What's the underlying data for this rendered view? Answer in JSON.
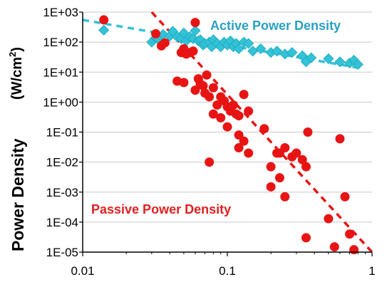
{
  "chart_data": {
    "type": "scatter",
    "title": "",
    "xlabel": "",
    "ylabel": "Power Density",
    "ylabel_unit_prefix": "(W/cm",
    "ylabel_unit_exponent": "2",
    "ylabel_unit_suffix": ")",
    "x_scale": "log",
    "y_scale": "log",
    "xlim": [
      0.01,
      1
    ],
    "ylim": [
      1e-05,
      1000
    ],
    "grid": true,
    "legend": "none",
    "x_ticks": [
      {
        "value": 0.01,
        "label": "0.01"
      },
      {
        "value": 0.1,
        "label": "0.1"
      },
      {
        "value": 1,
        "label": "1"
      }
    ],
    "y_ticks": [
      {
        "value": 1000,
        "label": "1E+03"
      },
      {
        "value": 100,
        "label": "1E+02"
      },
      {
        "value": 10,
        "label": "1E+01"
      },
      {
        "value": 1,
        "label": "1E+00"
      },
      {
        "value": 0.1,
        "label": "1E-01"
      },
      {
        "value": 0.01,
        "label": "1E-02"
      },
      {
        "value": 0.001,
        "label": "1E-03"
      },
      {
        "value": 0.0001,
        "label": "1E-04"
      },
      {
        "value": 1e-05,
        "label": "1E-05"
      }
    ],
    "annotations": [
      {
        "text": "Active Power Density",
        "color": "#2aa0c4",
        "anchor": "active"
      },
      {
        "text": "Passive Power Density",
        "color": "#e02020",
        "anchor": "passive"
      }
    ],
    "series": [
      {
        "marker": "diamond",
        "color": "#33c2d6",
        "trend_line": {
          "style": "dashed",
          "points": [
            [
              0.01,
              550
            ],
            [
              0.8,
              14
            ]
          ]
        },
        "points": [
          [
            0.014,
            250
          ],
          [
            0.03,
            100
          ],
          [
            0.032,
            140
          ],
          [
            0.033,
            130
          ],
          [
            0.036,
            180
          ],
          [
            0.04,
            160
          ],
          [
            0.042,
            230
          ],
          [
            0.045,
            150
          ],
          [
            0.048,
            130
          ],
          [
            0.05,
            200
          ],
          [
            0.052,
            110
          ],
          [
            0.055,
            150
          ],
          [
            0.058,
            130
          ],
          [
            0.06,
            240
          ],
          [
            0.063,
            110
          ],
          [
            0.065,
            120
          ],
          [
            0.068,
            80
          ],
          [
            0.07,
            90
          ],
          [
            0.075,
            100
          ],
          [
            0.078,
            70
          ],
          [
            0.08,
            120
          ],
          [
            0.085,
            90
          ],
          [
            0.09,
            70
          ],
          [
            0.095,
            100
          ],
          [
            0.1,
            80
          ],
          [
            0.105,
            110
          ],
          [
            0.11,
            70
          ],
          [
            0.115,
            90
          ],
          [
            0.12,
            60
          ],
          [
            0.13,
            100
          ],
          [
            0.14,
            90
          ],
          [
            0.15,
            50
          ],
          [
            0.17,
            60
          ],
          [
            0.2,
            45
          ],
          [
            0.22,
            50
          ],
          [
            0.25,
            40
          ],
          [
            0.28,
            45
          ],
          [
            0.33,
            35
          ],
          [
            0.35,
            22
          ],
          [
            0.38,
            30
          ],
          [
            0.5,
            28
          ],
          [
            0.6,
            22
          ],
          [
            0.7,
            20
          ],
          [
            0.75,
            25
          ],
          [
            0.8,
            18
          ]
        ]
      },
      {
        "marker": "circle",
        "color": "#e81414",
        "trend_line": {
          "style": "dashed",
          "points": [
            [
              0.03,
              1000
            ],
            [
              1,
              1e-05
            ]
          ]
        },
        "points": [
          [
            0.014,
            550
          ],
          [
            0.032,
            190
          ],
          [
            0.035,
            75
          ],
          [
            0.037,
            95
          ],
          [
            0.048,
            45
          ],
          [
            0.05,
            60
          ],
          [
            0.052,
            40
          ],
          [
            0.055,
            45
          ],
          [
            0.058,
            50
          ],
          [
            0.06,
            450
          ],
          [
            0.045,
            5
          ],
          [
            0.05,
            4.5
          ],
          [
            0.06,
            2.5
          ],
          [
            0.063,
            6
          ],
          [
            0.065,
            4
          ],
          [
            0.068,
            3.5
          ],
          [
            0.07,
            2
          ],
          [
            0.072,
            8
          ],
          [
            0.075,
            1.5
          ],
          [
            0.08,
            3
          ],
          [
            0.085,
            0.8
          ],
          [
            0.09,
            1.5
          ],
          [
            0.095,
            1.1
          ],
          [
            0.1,
            0.7
          ],
          [
            0.105,
            0.5
          ],
          [
            0.11,
            0.8
          ],
          [
            0.115,
            0.4
          ],
          [
            0.12,
            0.35
          ],
          [
            0.13,
            1.8
          ],
          [
            0.14,
            0.5
          ],
          [
            0.08,
            0.4
          ],
          [
            0.09,
            0.3
          ],
          [
            0.1,
            0.15
          ],
          [
            0.12,
            0.08
          ],
          [
            0.13,
            0.05
          ],
          [
            0.14,
            0.02
          ],
          [
            0.075,
            0.01
          ],
          [
            0.12,
            0.03
          ],
          [
            0.18,
            0.13
          ],
          [
            0.2,
            0.007
          ],
          [
            0.22,
            0.02
          ],
          [
            0.23,
            0.02
          ],
          [
            0.25,
            0.03
          ],
          [
            0.28,
            0.015
          ],
          [
            0.3,
            0.02
          ],
          [
            0.33,
            0.012
          ],
          [
            0.35,
            0.007
          ],
          [
            0.36,
            0.1
          ],
          [
            0.2,
            0.0015
          ],
          [
            0.23,
            0.003
          ],
          [
            0.25,
            0.0007
          ],
          [
            0.35,
            3e-05
          ],
          [
            0.5,
            0.00013
          ],
          [
            0.55,
            1.5e-05
          ],
          [
            0.6,
            0.06
          ],
          [
            0.65,
            0.0007
          ],
          [
            0.7,
            4e-05
          ],
          [
            0.75,
            1.2e-05
          ]
        ]
      }
    ]
  }
}
